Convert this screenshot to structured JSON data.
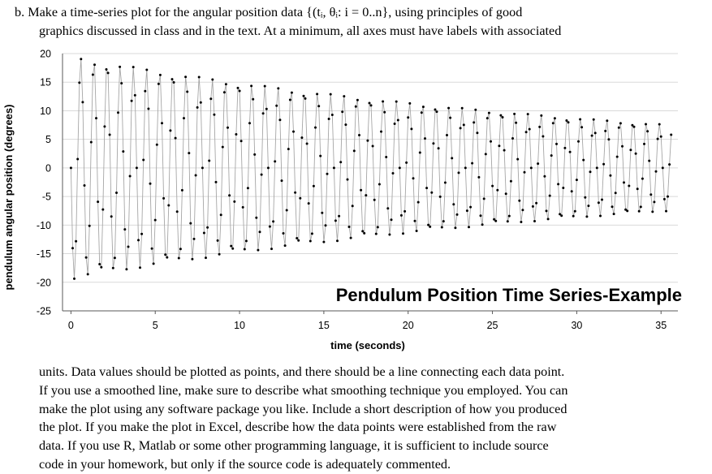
{
  "question": {
    "intro_lines": [
      "b.  Make a time-series plot for the angular position data {(tᵢ, θᵢ: i = 0..n}, using principles of good",
      "graphics discussed in class and in the text.  At a minimum, all axes must have labels with associated"
    ],
    "continuation_lines": [
      "units.  Data values should be plotted as points, and there should be a line connecting each data point.",
      "If you use a smoothed line, make sure to describe what smoothing technique you employed.  You can",
      "make the plot using any software package you like.  Include a short description of how you produced",
      "the plot.  If you make the plot in Excel, describe how the data points were established from the raw",
      "data.  If you use R, Matlab or some other programming language, it is sufficient to include source",
      "code in your homework, but only if the source code is adequately commented."
    ]
  },
  "chart_data": {
    "type": "scatter",
    "title": "Pendulum Position Time Series-Example",
    "xlabel": "time (seconds)",
    "ylabel": "pendulum angular position (degrees)",
    "xlim": [
      -0.5,
      36
    ],
    "ylim": [
      -25,
      20
    ],
    "xticks": [
      0,
      5,
      10,
      15,
      20,
      25,
      30,
      35
    ],
    "yticks": [
      20,
      15,
      10,
      5,
      0,
      -5,
      -10,
      -15,
      -20,
      -25
    ],
    "grid": "horizontal",
    "markers": true,
    "connecting_line": true,
    "point_color": "#000000",
    "line_color": "#a6a6a6",
    "grid_color": "#d9d9d9",
    "series_model": {
      "initial_amplitude": 19.5,
      "final_amplitude": 7.5,
      "period": 0.78,
      "t_start": 0,
      "t_end": 35.6,
      "sample_interval": 0.1
    }
  }
}
